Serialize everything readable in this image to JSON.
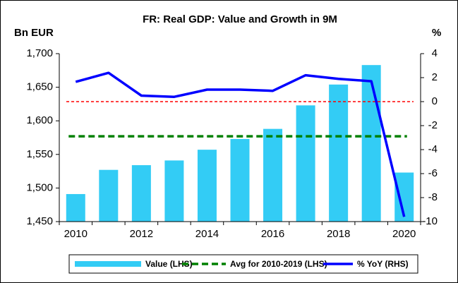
{
  "chart_data": {
    "type": "bar",
    "title": "FR: Real GDP: Value and Growth in 9M",
    "y_label": "Bn EUR",
    "y2_label": "%",
    "categories": [
      "2010",
      null,
      "2012",
      null,
      "2014",
      null,
      "2016",
      null,
      "2018",
      null,
      "2020"
    ],
    "series": [
      {
        "name": "Value (LHS)",
        "type": "bar",
        "color": "#33ccf5",
        "values": [
          1491,
          1527,
          1534,
          1541,
          1557,
          1573,
          1588,
          1623,
          1654,
          1683,
          1523
        ]
      },
      {
        "name": "Avg for 2010-2019 (LHS)",
        "type": "hline",
        "color": "#008000",
        "value": 1577
      },
      {
        "name": "% YoY (RHS)",
        "type": "line",
        "color": "#0000ff",
        "axis": "y2",
        "values": [
          1.65,
          2.4,
          0.5,
          0.4,
          1.0,
          1.0,
          0.9,
          2.2,
          1.9,
          1.7,
          -9.6
        ]
      }
    ],
    "reference_line": {
      "value": 0,
      "axis": "y2",
      "color": "#ff0000"
    },
    "ylim": [
      1450,
      1700
    ],
    "yticks": [
      {
        "value": 1450,
        "label": "1,450"
      },
      {
        "value": 1500,
        "label": "1,500"
      },
      {
        "value": 1550,
        "label": "1,550"
      },
      {
        "value": 1600,
        "label": "1,600"
      },
      {
        "value": 1650,
        "label": "1,650"
      },
      {
        "value": 1700,
        "label": "1,700"
      }
    ],
    "y2lim": [
      -10,
      4
    ],
    "y2ticks": [
      -10,
      -8,
      -6,
      -4,
      -2,
      0,
      2,
      4
    ],
    "grid": false,
    "legend": "bottom"
  }
}
